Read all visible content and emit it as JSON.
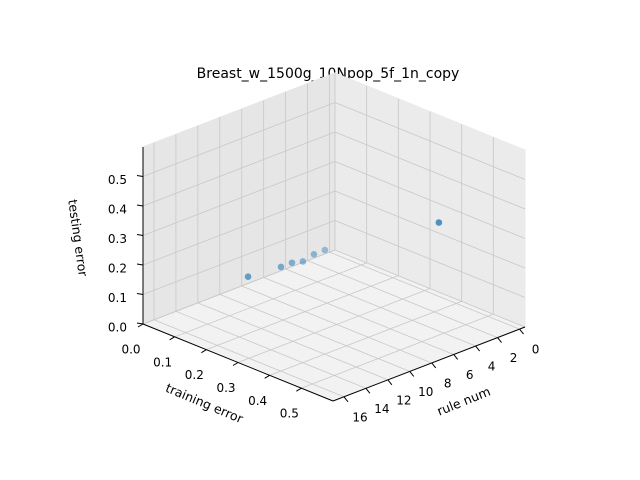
{
  "chart_data": {
    "type": "scatter3d",
    "title": "Breast_w_1500g_10Npop_5f_1n_copy",
    "xlabel": "rule num",
    "ylabel": "training error",
    "zlabel": "testing error",
    "x": [
      1,
      1,
      2,
      3,
      4,
      5,
      8
    ],
    "y": [
      0.38,
      0.02,
      0.02,
      0.02,
      0.02,
      0.02,
      0.02
    ],
    "z": [
      0.28,
      0.03,
      0.03,
      0.02,
      0.03,
      0.03,
      0.04
    ],
    "color": "#1f77b4",
    "xlim": [
      -0.5,
      17
    ],
    "xticks": [
      0,
      2,
      4,
      6,
      8,
      10,
      12,
      14,
      16
    ],
    "ylim": [
      0,
      0.6
    ],
    "yticks": [
      {
        "value": 0,
        "label": "0.0"
      },
      0.1,
      0.2,
      0.3,
      0.4,
      0.5
    ],
    "zlim": [
      0,
      0.6
    ],
    "zticks": [
      {
        "value": 0,
        "label": "0.0"
      },
      0.1,
      0.2,
      0.3,
      0.4,
      0.5
    ],
    "grid": true
  }
}
